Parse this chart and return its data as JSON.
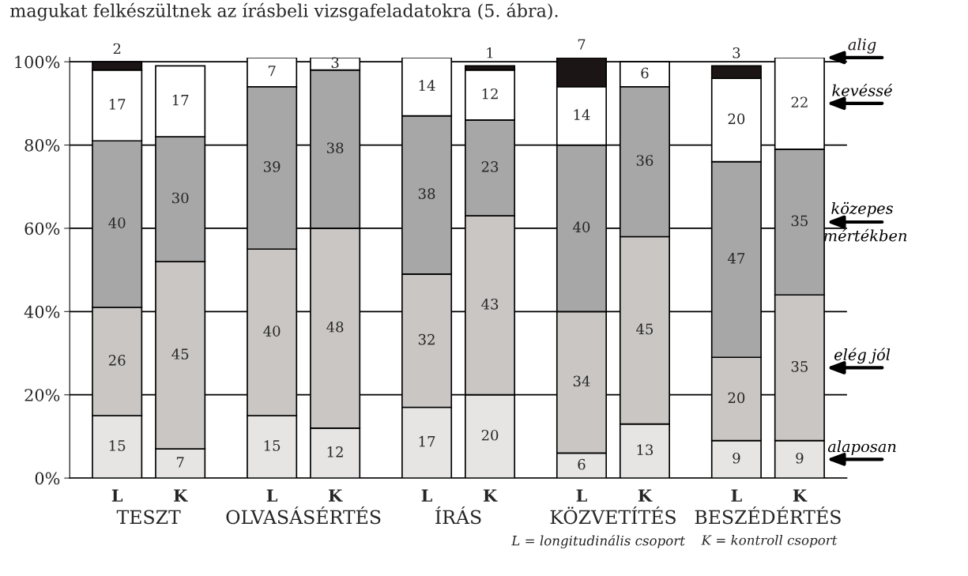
{
  "chart_data": {
    "type": "bar",
    "stacked": true,
    "categories": [
      "L",
      "K",
      "L",
      "K",
      "L",
      "K",
      "L",
      "K",
      "L",
      "K"
    ],
    "series": [
      {
        "name": "alaposan",
        "color": "#e6e5e3",
        "values": [
          15,
          7,
          15,
          12,
          17,
          20,
          6,
          13,
          9,
          9
        ]
      },
      {
        "name": "elég jól",
        "color": "#c9c6c4",
        "values": [
          26,
          45,
          40,
          48,
          32,
          43,
          34,
          45,
          20,
          35
        ]
      },
      {
        "name": "közepes mértékben",
        "color": "#a7a7a7",
        "values": [
          40,
          30,
          39,
          38,
          38,
          23,
          40,
          36,
          47,
          35
        ]
      },
      {
        "name": "kevéssé",
        "color": "#ffffff",
        "values": [
          17,
          17,
          7,
          3,
          14,
          12,
          14,
          6,
          20,
          22
        ]
      },
      {
        "name": "alig",
        "color": "#1c1515",
        "values": [
          2,
          null,
          null,
          null,
          null,
          1,
          7,
          null,
          3,
          null
        ]
      }
    ],
    "data_labels": true,
    "ylim": [
      0,
      101
    ],
    "yticks": [
      {
        "value": 0,
        "label": "0%"
      },
      {
        "value": 20,
        "label": "20%"
      },
      {
        "value": 40,
        "label": "40%"
      },
      {
        "value": 60,
        "label": "60%"
      },
      {
        "value": 80,
        "label": "80%"
      },
      {
        "value": 100,
        "label": "100%"
      }
    ],
    "grid": "y",
    "legend": false,
    "annotations": [
      "magukat felkészültnek az írásbeli vizsgafeladatokra (5. ábra).",
      "TESZT",
      "OLVASÁSÉRTÉS",
      "ÍRÁS",
      "KÖZVETÍTÉS",
      "BESZÉDÉRTÉS",
      "L = longitudinális csoport",
      "K = kontroll csoport"
    ]
  }
}
